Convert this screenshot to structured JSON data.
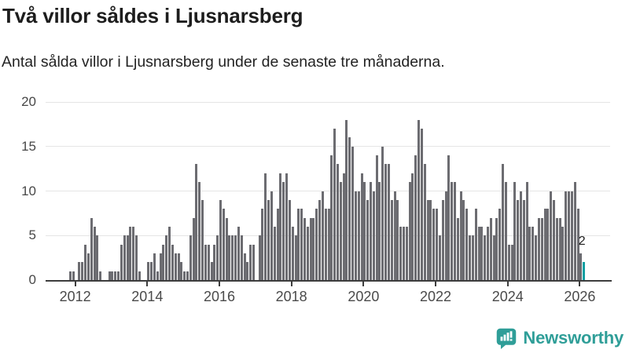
{
  "header": {
    "title": "Två villor såldes i Ljusnarsberg",
    "subtitle": "Antal sålda villor i Ljusnarsberg under de senaste tre månaderna."
  },
  "chart_data": {
    "type": "bar",
    "title": "Två villor såldes i Ljusnarsberg",
    "xlabel": "",
    "ylabel": "",
    "ylim": [
      0,
      20
    ],
    "grid": true,
    "legend": "none",
    "bar_color": "#6c6c71",
    "x_start": "2011-11",
    "x_tick_years": [
      "2012",
      "2014",
      "2016",
      "2018",
      "2020",
      "2022",
      "2024",
      "2026"
    ],
    "y_ticks": [
      "0",
      "5",
      "10",
      "15",
      "20"
    ],
    "values": [
      1,
      1,
      0,
      2,
      2,
      4,
      3,
      7,
      6,
      5,
      1,
      0,
      0,
      1,
      1,
      1,
      1,
      4,
      5,
      5,
      6,
      6,
      5,
      1,
      0,
      0,
      2,
      2,
      3,
      1,
      3,
      4,
      5,
      6,
      4,
      3,
      3,
      2,
      1,
      1,
      5,
      7,
      13,
      11,
      9,
      4,
      4,
      2,
      4,
      5,
      9,
      8,
      7,
      5,
      5,
      5,
      6,
      5,
      3,
      2,
      4,
      4,
      0,
      5,
      8,
      12,
      9,
      10,
      6,
      8,
      12,
      11,
      12,
      9,
      6,
      5,
      8,
      8,
      7,
      6,
      7,
      7,
      8,
      9,
      10,
      8,
      8,
      14,
      17,
      13,
      11,
      12,
      18,
      16,
      15,
      10,
      10,
      12,
      11,
      9,
      11,
      10,
      14,
      11,
      15,
      13,
      13,
      9,
      10,
      9,
      6,
      6,
      6,
      11,
      12,
      14,
      18,
      17,
      13,
      9,
      9,
      8,
      8,
      5,
      9,
      10,
      14,
      11,
      11,
      7,
      10,
      9,
      8,
      5,
      5,
      8,
      6,
      6,
      5,
      6,
      7,
      5,
      7,
      8,
      13,
      11,
      4,
      4,
      11,
      9,
      10,
      9,
      11,
      6,
      6,
      5,
      7,
      7,
      8,
      8,
      10,
      9,
      7,
      7,
      6,
      10,
      10,
      10,
      11,
      8,
      3,
      2
    ],
    "highlight": {
      "index": 171,
      "value": 2,
      "label": "2",
      "color": "#0c9fa2"
    }
  },
  "branding": {
    "logo_text": "Newsworthy",
    "logo_color": "#2f9e98",
    "logo_icon": "bar-chart-speech-bubble-icon"
  }
}
